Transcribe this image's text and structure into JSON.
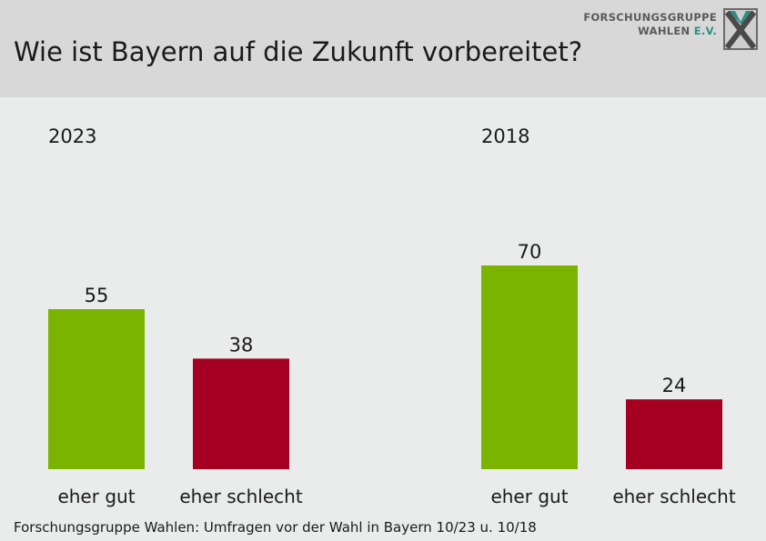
{
  "header": {
    "title": "Wie ist Bayern auf die Zukunft vorbereitet?",
    "logo_line1": "FORSCHUNGSGRUPPE",
    "logo_line2a": "WAHLEN ",
    "logo_line2b": "E.V."
  },
  "chart_data": {
    "type": "bar",
    "categories": [
      "eher gut",
      "eher schlecht"
    ],
    "groups": [
      {
        "name": "2023",
        "values": [
          55,
          38
        ]
      },
      {
        "name": "2018",
        "values": [
          70,
          24
        ]
      }
    ],
    "colors": [
      "#7ab300",
      "#a50021"
    ],
    "ylim": [
      0,
      100
    ],
    "grid": false,
    "legend": "none"
  },
  "footer": {
    "source": "Forschungsgruppe Wahlen: Umfragen vor der Wahl in Bayern 10/23 u. 10/18"
  }
}
